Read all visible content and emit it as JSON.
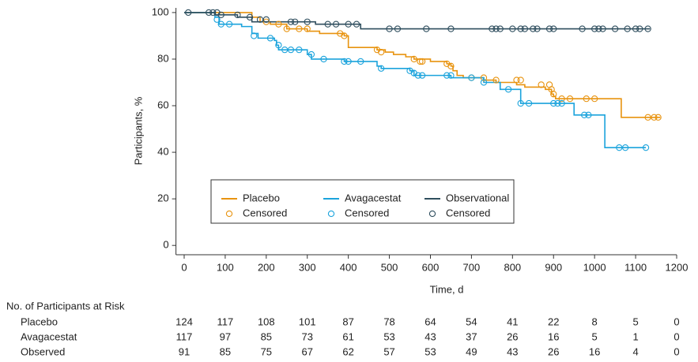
{
  "chart_data": {
    "type": "step",
    "x_label": "Time, d",
    "y_label": "Participants, %",
    "xlim": [
      -20,
      1200
    ],
    "ylim": [
      -4,
      102
    ],
    "xticks": [
      0,
      100,
      200,
      300,
      400,
      500,
      600,
      700,
      800,
      900,
      1000,
      1100,
      1200
    ],
    "yticks": [
      0,
      20,
      40,
      60,
      80,
      100
    ],
    "legend": "center",
    "series": [
      {
        "name": "Placebo",
        "color": "#e8930f",
        "marker": "line",
        "x": [
          0,
          165,
          185,
          210,
          250,
          300,
          330,
          390,
          400,
          470,
          490,
          510,
          540,
          560,
          600,
          640,
          650,
          655,
          665,
          680,
          730,
          760,
          810,
          830,
          880,
          895,
          900,
          905,
          1065,
          1160
        ],
        "values": [
          100,
          98,
          96,
          95,
          93,
          92,
          91,
          90,
          85,
          84,
          83,
          82,
          81,
          80,
          79,
          78,
          77,
          75,
          73,
          72,
          71,
          70,
          69,
          68,
          67,
          65,
          64,
          63,
          55,
          55
        ]
      },
      {
        "name": "Avagacestat",
        "color": "#1ba3dc",
        "marker": "line",
        "x": [
          0,
          75,
          85,
          140,
          165,
          180,
          220,
          225,
          230,
          300,
          310,
          390,
          470,
          480,
          550,
          560,
          650,
          730,
          770,
          820,
          950,
          1025,
          1125
        ],
        "values": [
          100,
          98,
          95,
          94,
          91,
          89,
          88,
          86,
          84,
          82,
          80,
          79,
          77,
          76,
          75,
          73,
          72,
          70,
          67,
          61,
          56,
          42,
          42
        ]
      },
      {
        "name": "Observational",
        "color": "#2f4e5e",
        "marker": "line",
        "x": [
          0,
          75,
          130,
          165,
          320,
          430,
          1135
        ],
        "values": [
          100,
          99,
          98,
          96,
          95,
          93,
          93
        ]
      },
      {
        "name": "Censored",
        "color": "#e8930f",
        "marker": "circle",
        "x": [
          200,
          230,
          250,
          280,
          300,
          380,
          390,
          470,
          480,
          560,
          575,
          580,
          640,
          650,
          700,
          730,
          760,
          810,
          820,
          870,
          890,
          895,
          900,
          920,
          940,
          980,
          1000,
          1130,
          1145,
          1155
        ],
        "values": [
          96,
          95,
          93,
          93,
          93,
          91,
          90,
          84,
          83,
          80,
          79,
          79,
          78,
          77,
          72,
          72,
          71,
          71,
          71,
          69,
          69,
          67,
          65,
          63,
          63,
          63,
          63,
          55,
          55,
          55
        ]
      },
      {
        "name": "Censored",
        "color": "#1ba3dc",
        "marker": "circle",
        "x": [
          80,
          90,
          110,
          170,
          210,
          230,
          245,
          260,
          280,
          310,
          340,
          390,
          400,
          430,
          480,
          550,
          560,
          570,
          580,
          640,
          650,
          700,
          730,
          790,
          820,
          840,
          900,
          910,
          920,
          975,
          985,
          1060,
          1075,
          1125
        ],
        "values": [
          97,
          95,
          95,
          90,
          89,
          86,
          84,
          84,
          84,
          82,
          80,
          79,
          79,
          79,
          76,
          75,
          74,
          73,
          73,
          73,
          73,
          72,
          70,
          67,
          61,
          61,
          61,
          61,
          61,
          56,
          56,
          42,
          42,
          42
        ]
      },
      {
        "name": "Censored",
        "color": "#2f4e5e",
        "marker": "circle",
        "x": [
          10,
          60,
          70,
          80,
          90,
          130,
          160,
          185,
          200,
          260,
          270,
          300,
          350,
          370,
          400,
          420,
          500,
          520,
          590,
          650,
          750,
          760,
          770,
          800,
          820,
          830,
          850,
          860,
          890,
          900,
          970,
          1000,
          1010,
          1020,
          1050,
          1080,
          1100,
          1110,
          1130
        ],
        "values": [
          100,
          100,
          100,
          100,
          99,
          99,
          98,
          97,
          97,
          96,
          96,
          96,
          95,
          95,
          95,
          95,
          93,
          93,
          93,
          93,
          93,
          93,
          93,
          93,
          93,
          93,
          93,
          93,
          93,
          93,
          93,
          93,
          93,
          93,
          93,
          93,
          93,
          93,
          93
        ]
      }
    ],
    "risk_table": {
      "title": "No. of Participants at Risk",
      "rows": [
        {
          "name": "Placebo",
          "values": [
            124,
            117,
            108,
            101,
            87,
            78,
            64,
            54,
            41,
            22,
            8,
            5,
            0
          ]
        },
        {
          "name": "Avagacestat",
          "values": [
            117,
            97,
            85,
            73,
            61,
            53,
            43,
            37,
            26,
            16,
            5,
            1,
            0
          ]
        },
        {
          "name": "Observed",
          "values": [
            91,
            85,
            75,
            67,
            62,
            57,
            53,
            49,
            43,
            26,
            16,
            4,
            0
          ]
        }
      ]
    }
  }
}
